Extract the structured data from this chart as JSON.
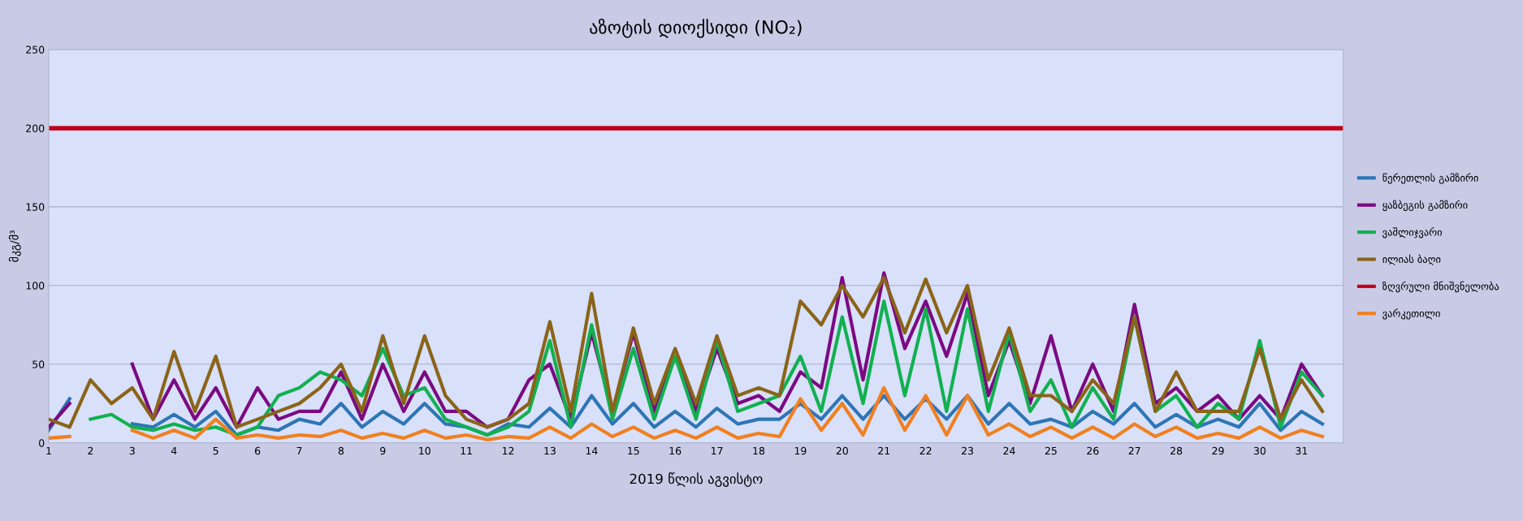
{
  "chart_data": {
    "type": "line",
    "title": "აზოტის დიოქსიდი (NO₂)",
    "xlabel": "2019 წლის აგვისტო",
    "ylabel": "მკგ/მ³",
    "x": [
      1,
      1.5,
      2,
      2.5,
      3,
      3.5,
      4,
      4.5,
      5,
      5.5,
      6,
      6.5,
      7,
      7.5,
      8,
      8.5,
      9,
      9.5,
      10,
      10.5,
      11,
      11.5,
      12,
      12.5,
      13,
      13.5,
      14,
      14.5,
      15,
      15.5,
      16,
      16.5,
      17,
      17.5,
      18,
      18.5,
      19,
      19.5,
      20,
      20.5,
      21,
      21.5,
      22,
      22.5,
      23,
      23.5,
      24,
      24.5,
      25,
      25.5,
      26,
      26.5,
      27,
      27.5,
      28,
      28.5,
      29,
      29.5,
      30,
      30.5,
      31,
      31.5
    ],
    "xlim": [
      1,
      32
    ],
    "xticks": [
      1,
      2,
      3,
      4,
      5,
      6,
      7,
      8,
      9,
      10,
      11,
      12,
      13,
      14,
      15,
      16,
      17,
      18,
      19,
      20,
      21,
      22,
      23,
      24,
      25,
      26,
      27,
      28,
      29,
      30,
      31
    ],
    "ylim": [
      0,
      250
    ],
    "yticks": [
      0,
      50,
      100,
      150,
      200,
      250
    ],
    "grid": "y",
    "legend": "right",
    "marker": "none",
    "line_style": "solid",
    "series": [
      {
        "name": "წერეთლის გამზირი",
        "color": "#2e75b6",
        "values": [
          8,
          28,
          null,
          null,
          12,
          10,
          18,
          10,
          20,
          5,
          10,
          8,
          15,
          12,
          25,
          10,
          20,
          12,
          25,
          12,
          10,
          5,
          12,
          10,
          22,
          10,
          30,
          12,
          25,
          10,
          20,
          10,
          22,
          12,
          15,
          15,
          25,
          15,
          30,
          15,
          30,
          15,
          28,
          15,
          30,
          12,
          25,
          12,
          15,
          10,
          20,
          12,
          25,
          10,
          18,
          10,
          15,
          10,
          25,
          8,
          20,
          12
        ]
      },
      {
        "name": "ყაზბეგის გამზირი",
        "color": "#7b0a82",
        "values": [
          10,
          25,
          null,
          null,
          50,
          15,
          40,
          15,
          35,
          10,
          35,
          15,
          20,
          20,
          45,
          15,
          50,
          20,
          45,
          20,
          20,
          10,
          15,
          40,
          50,
          15,
          70,
          20,
          70,
          20,
          55,
          20,
          60,
          25,
          30,
          20,
          45,
          35,
          105,
          40,
          108,
          60,
          90,
          55,
          95,
          30,
          65,
          25,
          68,
          20,
          50,
          20,
          88,
          25,
          35,
          20,
          30,
          15,
          30,
          15,
          50,
          30
        ]
      },
      {
        "name": "ვაშლიჯვარი",
        "color": "#12b050",
        "values": [
          null,
          null,
          15,
          18,
          10,
          8,
          12,
          8,
          10,
          5,
          10,
          30,
          35,
          45,
          40,
          30,
          60,
          30,
          35,
          15,
          10,
          5,
          10,
          20,
          65,
          10,
          75,
          15,
          60,
          15,
          55,
          15,
          65,
          20,
          25,
          30,
          55,
          20,
          80,
          25,
          90,
          30,
          85,
          20,
          85,
          20,
          70,
          20,
          40,
          10,
          35,
          15,
          80,
          20,
          30,
          10,
          25,
          15,
          65,
          10,
          45,
          30
        ]
      },
      {
        "name": "ილიას ბაღი",
        "color": "#8a6418",
        "values": [
          15,
          10,
          40,
          25,
          35,
          15,
          58,
          20,
          55,
          10,
          15,
          20,
          25,
          35,
          50,
          20,
          68,
          25,
          68,
          30,
          15,
          10,
          15,
          25,
          77,
          20,
          95,
          20,
          73,
          25,
          60,
          25,
          68,
          30,
          35,
          30,
          90,
          75,
          100,
          80,
          105,
          70,
          104,
          70,
          100,
          40,
          73,
          30,
          30,
          20,
          40,
          25,
          80,
          20,
          45,
          20,
          20,
          20,
          60,
          15,
          40,
          20
        ]
      },
      {
        "name": "ვარკეთილი",
        "color": "#f08020",
        "values": [
          3,
          4,
          null,
          null,
          8,
          3,
          8,
          3,
          15,
          3,
          5,
          3,
          5,
          4,
          8,
          3,
          6,
          3,
          8,
          3,
          5,
          2,
          4,
          3,
          10,
          3,
          12,
          4,
          10,
          3,
          8,
          3,
          10,
          3,
          6,
          4,
          28,
          8,
          25,
          5,
          35,
          8,
          30,
          5,
          30,
          5,
          12,
          4,
          10,
          3,
          10,
          3,
          12,
          4,
          10,
          3,
          6,
          3,
          10,
          3,
          8,
          4
        ]
      }
    ],
    "ref_lines": [
      {
        "axis": "y",
        "value": 200,
        "label": "ზღვრული მნიშვნელობა",
        "color": "#c0001a",
        "line_style": "solid"
      }
    ]
  }
}
